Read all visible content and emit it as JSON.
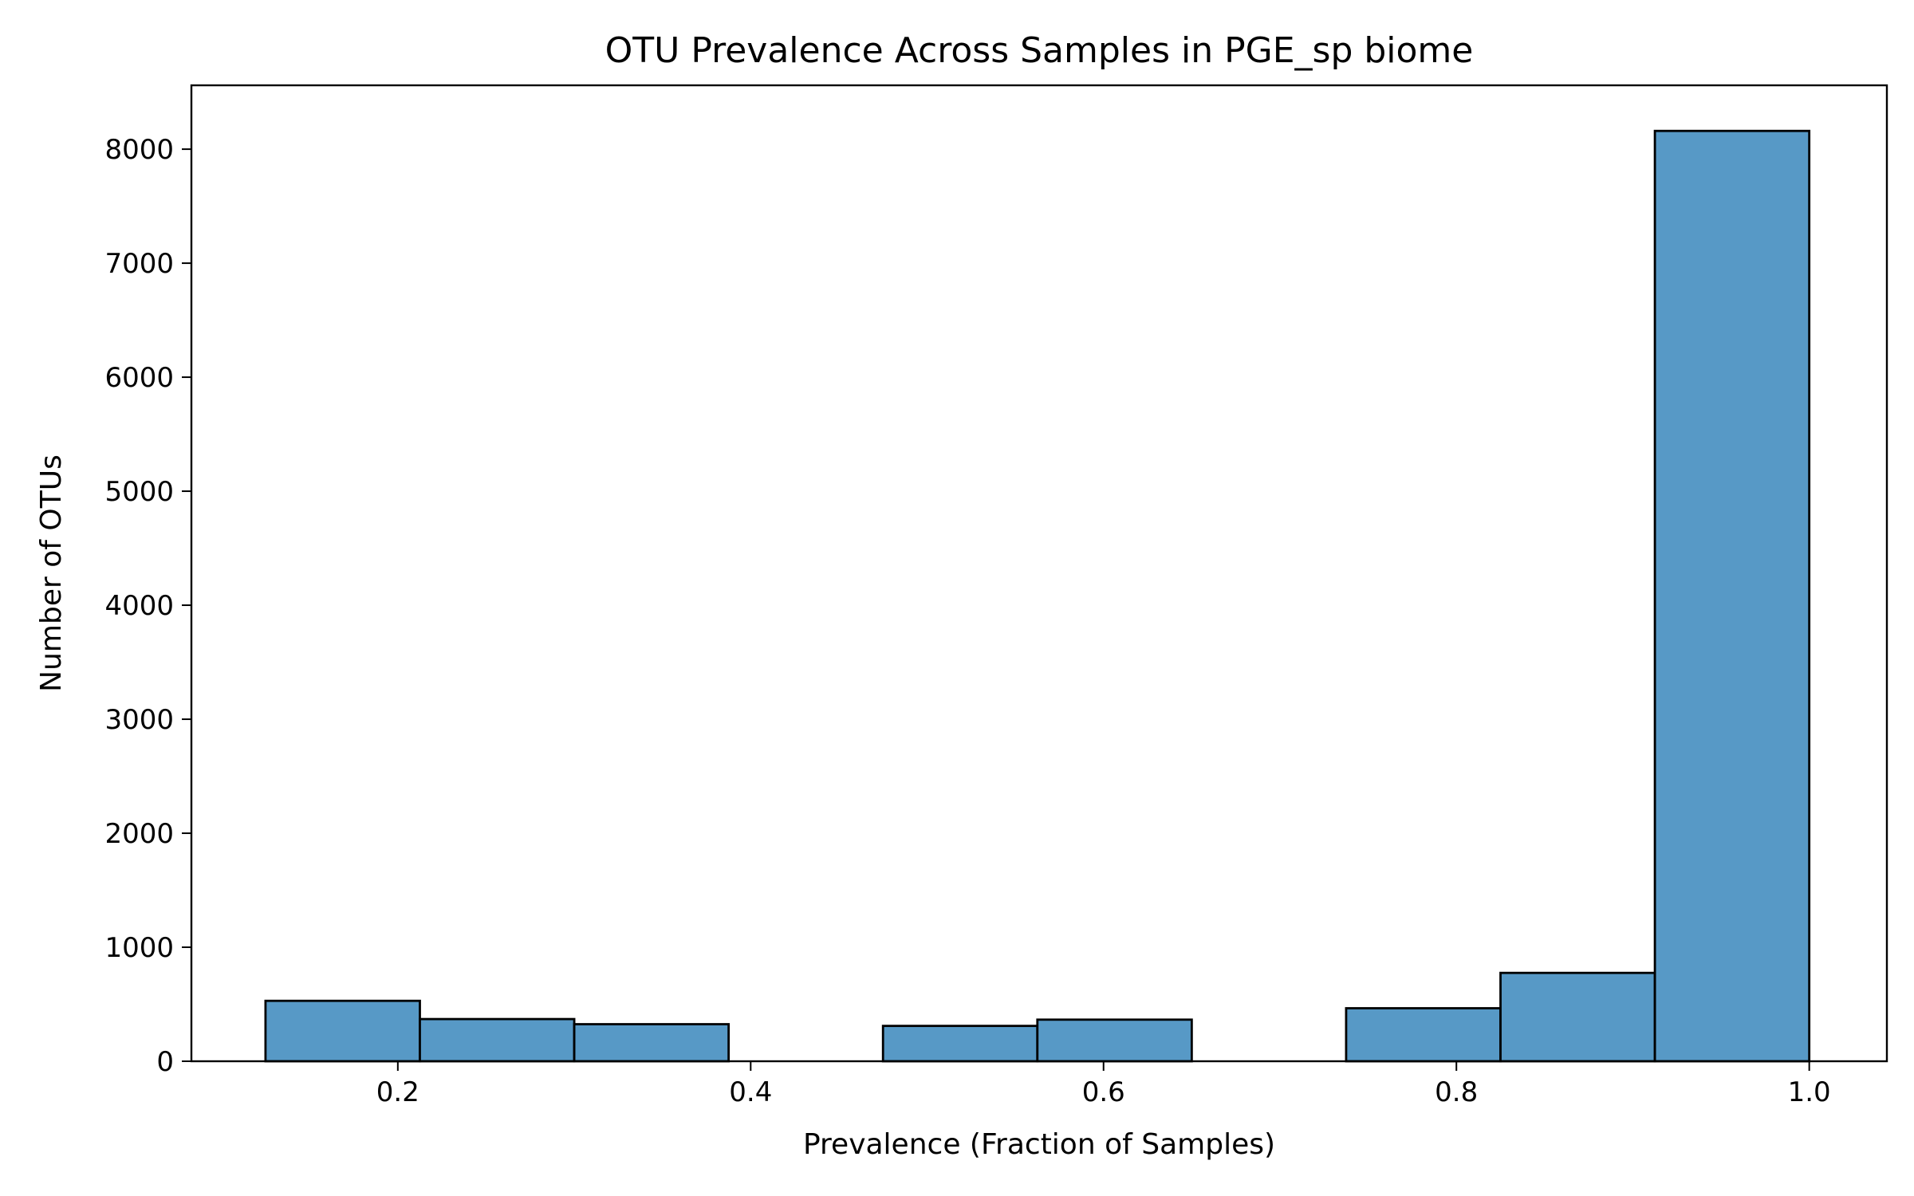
{
  "chart_data": {
    "type": "bar",
    "title": "OTU Prevalence Across Samples in PGE_sp biome",
    "xlabel": "Prevalence (Fraction of Samples)",
    "ylabel": "Number of OTUs",
    "xlim": [
      0.083,
      1.044
    ],
    "ylim": [
      0,
      8560
    ],
    "grid": false,
    "legend": "none",
    "bar_color": "#5799c6",
    "edge_color": "#000000",
    "x_ticks": [
      0.2,
      0.4,
      0.6,
      0.8,
      1.0
    ],
    "x_tick_labels": [
      "0.2",
      "0.4",
      "0.6",
      "0.8",
      "1.0"
    ],
    "y_ticks": [
      0,
      1000,
      2000,
      3000,
      4000,
      5000,
      6000,
      7000,
      8000
    ],
    "y_tick_labels": [
      "0",
      "1000",
      "2000",
      "3000",
      "4000",
      "5000",
      "6000",
      "7000",
      "8000"
    ],
    "bins": [
      {
        "x0": 0.125,
        "x1": 0.2125,
        "value": 530
      },
      {
        "x0": 0.2125,
        "x1": 0.3,
        "value": 370
      },
      {
        "x0": 0.3,
        "x1": 0.3875,
        "value": 325
      },
      {
        "x0": 0.3875,
        "x1": 0.475,
        "value": 0
      },
      {
        "x0": 0.475,
        "x1": 0.5625,
        "value": 310
      },
      {
        "x0": 0.5625,
        "x1": 0.65,
        "value": 365
      },
      {
        "x0": 0.65,
        "x1": 0.7375,
        "value": 0
      },
      {
        "x0": 0.7375,
        "x1": 0.825,
        "value": 465
      },
      {
        "x0": 0.825,
        "x1": 0.9125,
        "value": 775
      },
      {
        "x0": 0.9125,
        "x1": 1.0,
        "value": 8160
      }
    ]
  }
}
